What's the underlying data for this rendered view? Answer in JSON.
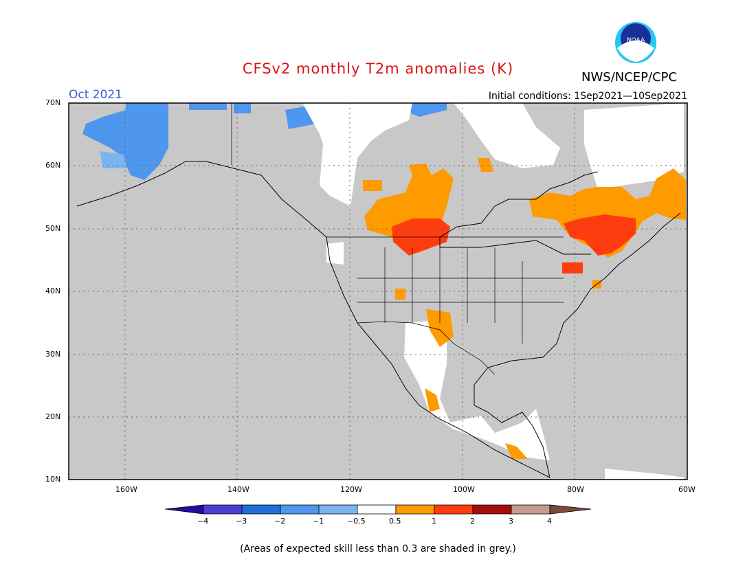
{
  "title": "CFSv2 monthly T2m anomalies (K)",
  "agency": "NWS/NCEP/CPC",
  "logo_text": "NOAA",
  "valid_month": "Oct 2021",
  "initial_conditions": "Initial conditions: 1Sep2021—10Sep2021",
  "footnote": "(Areas of expected skill less than 0.3 are shaded in grey.)",
  "map": {
    "region": "North America",
    "lon_range": [
      -170,
      -60
    ],
    "lat_range": [
      10,
      70
    ],
    "lat_labels": [
      "70N",
      "60N",
      "50N",
      "40N",
      "30N",
      "20N",
      "10N"
    ],
    "lon_labels": [
      "160W",
      "140W",
      "120W",
      "100W",
      "80W",
      "60W"
    ],
    "gridlines": "dotted",
    "background_skill_mask_color": "#c8c8c8"
  },
  "legend": {
    "tick_labels": [
      "−4",
      "−3",
      "−2",
      "−1",
      "−0.5",
      "0.5",
      "1",
      "2",
      "3",
      "4"
    ],
    "colors": [
      "#2a0a99",
      "#4a3fd0",
      "#1f6fd8",
      "#4f96ee",
      "#7ab5f2",
      "#ffffff",
      "#ff9a00",
      "#ff3c0d",
      "#a50c0c",
      "#c79c90",
      "#7a4a3a"
    ]
  },
  "colors": {
    "title": "#e01010",
    "month": "#3a5fd8",
    "cool": "#4f96ee",
    "warm_1": "#ff9a00",
    "warm_2": "#ff3c0d",
    "neutral": "#ffffff"
  }
}
